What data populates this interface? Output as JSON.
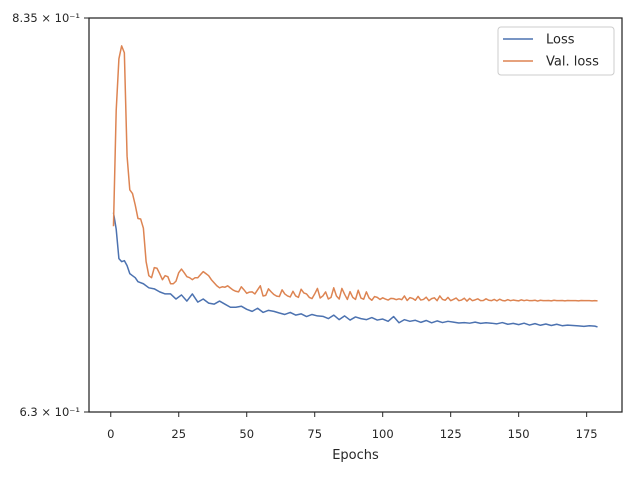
{
  "chart_data": {
    "type": "line",
    "xlabel": "Epochs",
    "ylabel": "",
    "xlim": [
      -8,
      188
    ],
    "ylim": [
      0.63,
      0.835
    ],
    "y_scale": "log",
    "x_ticks": [
      0,
      25,
      50,
      75,
      100,
      125,
      150,
      175
    ],
    "y_ticks": [
      {
        "value": 0.835,
        "label": "8.35 × 10⁻¹"
      },
      {
        "value": 0.63,
        "label": "6.3 × 10⁻¹"
      }
    ],
    "grid": false,
    "legend": "top-right",
    "series": [
      {
        "name": "Loss",
        "color": "#4c72b0",
        "x": [
          1,
          2,
          3,
          4,
          5,
          6,
          7,
          8,
          9,
          10,
          12,
          14,
          16,
          18,
          20,
          22,
          24,
          26,
          28,
          30,
          32,
          34,
          36,
          38,
          40,
          42,
          44,
          46,
          48,
          50,
          52,
          54,
          56,
          58,
          60,
          62,
          64,
          66,
          68,
          70,
          72,
          74,
          76,
          78,
          80,
          82,
          84,
          86,
          88,
          90,
          92,
          94,
          96,
          98,
          100,
          102,
          104,
          106,
          108,
          110,
          112,
          114,
          116,
          118,
          120,
          122,
          124,
          126,
          128,
          130,
          132,
          134,
          136,
          138,
          140,
          142,
          144,
          146,
          148,
          150,
          152,
          154,
          156,
          158,
          160,
          162,
          164,
          166,
          168,
          170,
          172,
          174,
          176,
          178,
          179
        ],
        "values": [
          0.7265,
          0.718,
          0.703,
          0.7015,
          0.702,
          0.6995,
          0.6955,
          0.6945,
          0.6935,
          0.6915,
          0.6905,
          0.6885,
          0.688,
          0.6865,
          0.6855,
          0.6855,
          0.683,
          0.685,
          0.682,
          0.6855,
          0.6815,
          0.683,
          0.681,
          0.6805,
          0.682,
          0.6805,
          0.679,
          0.679,
          0.6795,
          0.678,
          0.677,
          0.6785,
          0.6765,
          0.6775,
          0.677,
          0.6762,
          0.6755,
          0.6765,
          0.6752,
          0.6758,
          0.6745,
          0.6755,
          0.6748,
          0.6746,
          0.6735,
          0.6752,
          0.673,
          0.6748,
          0.6728,
          0.6743,
          0.6735,
          0.673,
          0.674,
          0.6728,
          0.6733,
          0.6722,
          0.6745,
          0.6715,
          0.673,
          0.6722,
          0.6727,
          0.6717,
          0.6726,
          0.6715,
          0.6724,
          0.6716,
          0.6722,
          0.6718,
          0.6714,
          0.6716,
          0.6713,
          0.6718,
          0.6712,
          0.6715,
          0.6713,
          0.671,
          0.6716,
          0.6708,
          0.6712,
          0.6706,
          0.6713,
          0.6704,
          0.6711,
          0.6703,
          0.6709,
          0.6702,
          0.6708,
          0.6701,
          0.6704,
          0.6702,
          0.67,
          0.6698,
          0.6701,
          0.6699,
          0.6695
        ]
      },
      {
        "name": "Val. loss",
        "color": "#dd8452",
        "x": [
          1,
          2,
          3,
          4,
          5,
          6,
          7,
          8,
          9,
          10,
          11,
          12,
          13,
          14,
          15,
          16,
          17,
          18,
          19,
          20,
          21,
          22,
          23,
          24,
          25,
          26,
          27,
          28,
          29,
          30,
          31,
          32,
          33,
          34,
          35,
          36,
          37,
          38,
          39,
          40,
          41,
          42,
          43,
          44,
          45,
          46,
          47,
          48,
          49,
          50,
          51,
          52,
          53,
          54,
          55,
          56,
          57,
          58,
          59,
          60,
          61,
          62,
          63,
          64,
          65,
          66,
          67,
          68,
          69,
          70,
          71,
          72,
          73,
          74,
          75,
          76,
          77,
          78,
          79,
          80,
          81,
          82,
          83,
          84,
          85,
          86,
          87,
          88,
          89,
          90,
          91,
          92,
          93,
          94,
          95,
          96,
          97,
          98,
          99,
          100,
          101,
          102,
          103,
          104,
          105,
          106,
          107,
          108,
          109,
          110,
          111,
          112,
          113,
          114,
          115,
          116,
          117,
          118,
          119,
          120,
          121,
          122,
          123,
          124,
          125,
          126,
          127,
          128,
          129,
          130,
          131,
          132,
          133,
          134,
          135,
          136,
          137,
          138,
          139,
          140,
          141,
          142,
          143,
          144,
          145,
          146,
          147,
          148,
          149,
          150,
          151,
          152,
          153,
          154,
          155,
          156,
          157,
          158,
          159,
          160,
          161,
          162,
          163,
          164,
          165,
          166,
          167,
          168,
          169,
          170,
          171,
          172,
          173,
          174,
          175,
          176,
          177,
          178,
          179
        ],
        "values": [
          0.7195,
          0.7815,
          0.811,
          0.8185,
          0.8145,
          0.7565,
          0.7385,
          0.7365,
          0.7305,
          0.7235,
          0.7232,
          0.7185,
          0.7015,
          0.6945,
          0.6935,
          0.6985,
          0.6982,
          0.6955,
          0.6925,
          0.6945,
          0.694,
          0.6905,
          0.6905,
          0.6918,
          0.696,
          0.6978,
          0.696,
          0.694,
          0.6935,
          0.6925,
          0.6935,
          0.6935,
          0.695,
          0.6965,
          0.6955,
          0.6945,
          0.6925,
          0.691,
          0.6895,
          0.6885,
          0.689,
          0.6888,
          0.6895,
          0.6884,
          0.6874,
          0.6868,
          0.6865,
          0.689,
          0.6875,
          0.6858,
          0.6864,
          0.6865,
          0.6855,
          0.6875,
          0.6895,
          0.6845,
          0.6848,
          0.688,
          0.6865,
          0.6852,
          0.6844,
          0.6842,
          0.6875,
          0.6855,
          0.6845,
          0.684,
          0.6868,
          0.6845,
          0.6838,
          0.6878,
          0.686,
          0.6855,
          0.6838,
          0.6832,
          0.6855,
          0.6882,
          0.6835,
          0.6845,
          0.6865,
          0.683,
          0.6838,
          0.6885,
          0.6845,
          0.683,
          0.6882,
          0.6853,
          0.6828,
          0.6866,
          0.6838,
          0.6828,
          0.6873,
          0.6835,
          0.6829,
          0.6865,
          0.6835,
          0.6824,
          0.6842,
          0.6838,
          0.6828,
          0.6836,
          0.683,
          0.6825,
          0.6833,
          0.6832,
          0.6827,
          0.6831,
          0.6827,
          0.6845,
          0.6823,
          0.6837,
          0.6833,
          0.6824,
          0.6843,
          0.6825,
          0.6828,
          0.6839,
          0.6822,
          0.6832,
          0.6836,
          0.6822,
          0.6845,
          0.6828,
          0.6824,
          0.6838,
          0.6822,
          0.6828,
          0.6835,
          0.6822,
          0.6825,
          0.6834,
          0.682,
          0.6833,
          0.6822,
          0.6826,
          0.6831,
          0.6822,
          0.6823,
          0.6831,
          0.6824,
          0.6822,
          0.6828,
          0.6821,
          0.6829,
          0.6823,
          0.6821,
          0.6827,
          0.6822,
          0.6825,
          0.6823,
          0.6821,
          0.6826,
          0.6822,
          0.6825,
          0.6822,
          0.6822,
          0.6824,
          0.682,
          0.6824,
          0.6822,
          0.6822,
          0.6823,
          0.6821,
          0.6824,
          0.6822,
          0.6822,
          0.6823,
          0.6821,
          0.6823,
          0.6822,
          0.6822,
          0.6822,
          0.6821,
          0.6823,
          0.6822,
          0.6822,
          0.6822,
          0.6821,
          0.6822,
          0.6821
        ]
      }
    ]
  }
}
